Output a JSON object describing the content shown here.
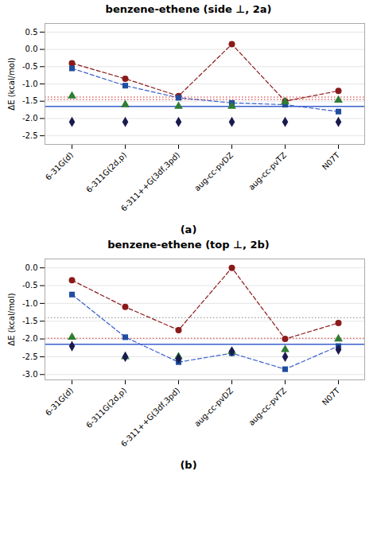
{
  "chart_data": [
    {
      "type": "scatter",
      "title": "benzene-ethene (side ⊥, 2a)",
      "subtitle": "(a)",
      "y_label": "ΔE (kcal/mol)",
      "categories": [
        "6-31G(d)",
        "6-311G(2d,p)",
        "6-311++G(3df,3pd)",
        "aug-cc-pvDZ",
        "aug-cc-pvTZ",
        "N07T"
      ],
      "ylim": [
        -2.75,
        0.75
      ],
      "yticks": [
        0.5,
        {
          "value": 0,
          "label": "0.0"
        },
        -0.5,
        {
          "value": -1,
          "label": "-1.0"
        },
        -1.5,
        {
          "value": -2,
          "label": "-2.0"
        },
        -2.5
      ],
      "grid": true,
      "series": [
        {
          "type": "line",
          "color": "#8B1A1A",
          "line_style": "dashed",
          "values": [
            -0.4,
            -0.85,
            -1.35,
            0.15,
            -1.5,
            -1.2
          ]
        },
        {
          "type": "line",
          "color": "#3A5FCD",
          "line_style": "dashed",
          "values": [
            -0.55,
            -1.05,
            -1.4,
            -1.55,
            -1.6,
            -1.8
          ]
        },
        {
          "type": "scatter",
          "color": "#8B1A1A",
          "marker": "circle",
          "values": [
            -0.4,
            -0.85,
            -1.35,
            0.15,
            -1.5,
            -1.2
          ]
        },
        {
          "type": "scatter",
          "color": "#1F4E9F",
          "marker": "square",
          "values": [
            -0.55,
            -1.05,
            -1.4,
            -1.55,
            -1.6,
            -1.8
          ]
        },
        {
          "type": "scatter",
          "color": "#2E7D32",
          "marker": "triangle",
          "values": [
            -1.35,
            -1.6,
            -1.65,
            -1.65,
            -1.52,
            -1.47
          ]
        },
        {
          "type": "scatter",
          "color": "#1A1A4E",
          "marker": "diamond",
          "values": [
            -2.1,
            -2.1,
            -2.1,
            -2.1,
            -2.1,
            -2.1
          ]
        }
      ],
      "reference_lines": [
        {
          "value": -1.65,
          "color": "#3A5FCD",
          "line_style": "solid"
        },
        {
          "value": -1.38,
          "color": "#CC2222",
          "line_style": "dotted"
        },
        {
          "value": -1.45,
          "color": "#CC2222",
          "line_style": "dotted"
        }
      ]
    },
    {
      "type": "scatter",
      "title": "benzene-ethene (top ⊥, 2b)",
      "subtitle": "(b)",
      "y_label": "ΔE (kcal/mol)",
      "categories": [
        "6-31G(d)",
        "6-311G(2d,p)",
        "6-311++G(3df,3pd)",
        "aug-cc-pvDZ",
        "aug-cc-pvTZ",
        "N07T"
      ],
      "ylim": [
        -3.15,
        0.25
      ],
      "yticks": [
        {
          "value": 0,
          "label": "0.0"
        },
        -0.5,
        {
          "value": -1,
          "label": "-1.0"
        },
        -1.5,
        {
          "value": -2,
          "label": "-2.0"
        },
        -2.5,
        {
          "value": -3,
          "label": "-3.0"
        }
      ],
      "grid": true,
      "series": [
        {
          "type": "line",
          "color": "#8B1A1A",
          "line_style": "dashed",
          "values": [
            -0.35,
            -1.1,
            -1.75,
            0.0,
            -2.0,
            -1.55
          ]
        },
        {
          "type": "line",
          "color": "#3A5FCD",
          "line_style": "dashed",
          "values": [
            -0.75,
            -1.95,
            -2.65,
            -2.4,
            -2.85,
            -2.2
          ]
        },
        {
          "type": "scatter",
          "color": "#8B1A1A",
          "marker": "circle",
          "values": [
            -0.35,
            -1.1,
            -1.75,
            0.0,
            -2.0,
            -1.55
          ]
        },
        {
          "type": "scatter",
          "color": "#1F4E9F",
          "marker": "square",
          "values": [
            -0.75,
            -1.95,
            -2.65,
            -2.4,
            -2.85,
            -2.2
          ]
        },
        {
          "type": "scatter",
          "color": "#2E7D32",
          "marker": "triangle",
          "values": [
            -1.95,
            -2.5,
            -2.5,
            -2.35,
            -2.3,
            -2.0
          ]
        },
        {
          "type": "scatter",
          "color": "#1A1A4E",
          "marker": "diamond",
          "values": [
            -2.2,
            -2.5,
            -2.55,
            -2.35,
            -2.5,
            -2.3
          ]
        }
      ],
      "reference_lines": [
        {
          "value": -2.15,
          "color": "#3A5FCD",
          "line_style": "solid"
        },
        {
          "value": -1.98,
          "color": "#CC2222",
          "line_style": "dotted"
        },
        {
          "value": -1.4,
          "color": "#888888",
          "line_style": "dotted"
        }
      ]
    }
  ]
}
